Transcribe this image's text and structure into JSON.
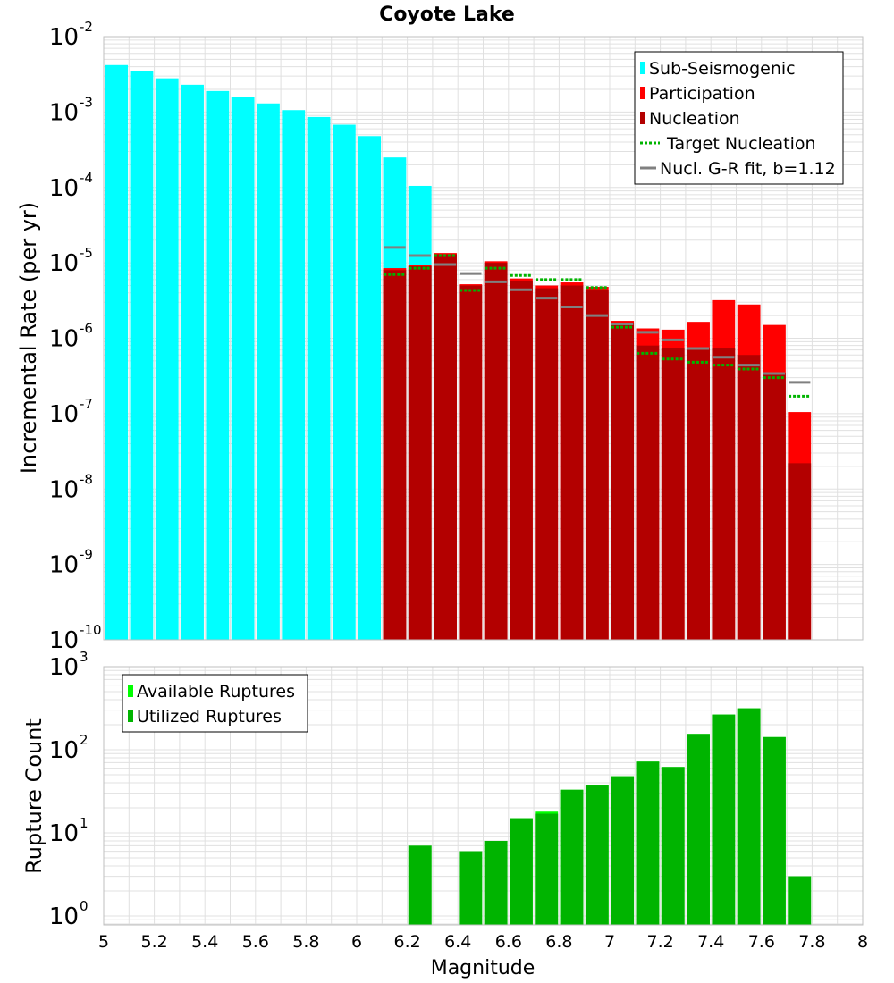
{
  "title": "Coyote Lake",
  "colors": {
    "sub_seismogenic": "#00ffff",
    "participation": "#ff0000",
    "nucleation": "#b30000",
    "target_nucleation": "#00b400",
    "gr_fit": "#808080",
    "available": "#00ff00",
    "utilized": "#00b400",
    "grid": "#e0e0e0",
    "frame": "#bfbfbf"
  },
  "chart_data": [
    {
      "type": "bar",
      "name": "rate-panel",
      "scale": "log",
      "ylabel": "Incremental Rate (per yr)",
      "xlabel": "",
      "xlim": [
        5,
        8
      ],
      "ylim": [
        1e-10,
        0.01
      ],
      "y_ticks": [
        {
          "base": "10",
          "exp": "-10",
          "value": 1e-10
        },
        {
          "base": "10",
          "exp": "-9",
          "value": 1e-09
        },
        {
          "base": "10",
          "exp": "-8",
          "value": 1e-08
        },
        {
          "base": "10",
          "exp": "-7",
          "value": 1e-07
        },
        {
          "base": "10",
          "exp": "-6",
          "value": 1e-06
        },
        {
          "base": "10",
          "exp": "-5",
          "value": 1e-05
        },
        {
          "base": "10",
          "exp": "-4",
          "value": 0.0001
        },
        {
          "base": "10",
          "exp": "-3",
          "value": 0.001
        },
        {
          "base": "10",
          "exp": "-2",
          "value": 0.01
        }
      ],
      "legend": {
        "placement": "top-right",
        "entries": [
          {
            "label": "Sub-Seismogenic",
            "kind": "box",
            "color_key": "sub_seismogenic"
          },
          {
            "label": "Participation",
            "kind": "box",
            "color_key": "participation"
          },
          {
            "label": "Nucleation",
            "kind": "box",
            "color_key": "nucleation"
          },
          {
            "label": "Target Nucleation",
            "kind": "dotted",
            "color_key": "target_nucleation"
          },
          {
            "label": "Nucl. G-R fit, b=1.12",
            "kind": "line",
            "color_key": "gr_fit"
          }
        ]
      },
      "series": [
        {
          "name": "Sub-Seismogenic",
          "color_key": "sub_seismogenic",
          "style": "bar",
          "x": [
            5.05,
            5.15,
            5.25,
            5.35,
            5.45,
            5.55,
            5.65,
            5.75,
            5.85,
            5.95,
            6.05,
            6.15,
            6.25
          ],
          "values": [
            0.0042,
            0.0035,
            0.0028,
            0.0023,
            0.0019,
            0.0016,
            0.0013,
            0.00106,
            0.00086,
            0.00068,
            0.00048,
            0.00025,
            0.000105
          ]
        },
        {
          "name": "Participation",
          "color_key": "participation",
          "style": "bar",
          "x": [
            6.15,
            6.25,
            6.35,
            6.45,
            6.55,
            6.65,
            6.75,
            6.85,
            6.95,
            7.05,
            7.15,
            7.25,
            7.35,
            7.45,
            7.55,
            7.65,
            7.75
          ],
          "values": [
            8.5e-06,
            9.5e-06,
            1.35e-05,
            5.2e-06,
            1.05e-05,
            6.2e-06,
            5e-06,
            5.5e-06,
            4.8e-06,
            1.7e-06,
            1.35e-06,
            1.3e-06,
            1.65e-06,
            3.2e-06,
            2.8e-06,
            1.5e-06,
            1.05e-07
          ]
        },
        {
          "name": "Nucleation",
          "color_key": "nucleation",
          "style": "bar",
          "x": [
            6.15,
            6.25,
            6.35,
            6.45,
            6.55,
            6.65,
            6.75,
            6.85,
            6.95,
            7.05,
            7.15,
            7.25,
            7.35,
            7.45,
            7.55,
            7.65,
            7.75
          ],
          "values": [
            8e-06,
            9e-06,
            1.3e-05,
            5e-06,
            1e-05,
            5.8e-06,
            4.6e-06,
            5e-06,
            4.3e-06,
            1.6e-06,
            8e-07,
            7.5e-07,
            7.5e-07,
            7.5e-07,
            6e-07,
            3.5e-07,
            2.2e-08
          ]
        },
        {
          "name": "Target Nucleation",
          "color_key": "target_nucleation",
          "style": "dotted",
          "x": [
            6.15,
            6.25,
            6.35,
            6.45,
            6.55,
            6.65,
            6.75,
            6.85,
            6.95,
            7.05,
            7.15,
            7.25,
            7.35,
            7.45,
            7.55,
            7.65,
            7.75
          ],
          "values": [
            7e-06,
            8.5e-06,
            1.25e-05,
            4.3e-06,
            8.5e-06,
            6.8e-06,
            6e-06,
            6e-06,
            4.7e-06,
            1.4e-06,
            6.3e-07,
            5.3e-07,
            4.8e-07,
            4.4e-07,
            3.9e-07,
            3e-07,
            1.7e-07
          ]
        },
        {
          "name": "Nucl. G-R fit, b=1.12",
          "color_key": "gr_fit",
          "style": "line",
          "x": [
            6.15,
            6.25,
            6.35,
            6.45,
            6.55,
            6.65,
            6.75,
            6.85,
            6.95,
            7.05,
            7.15,
            7.25,
            7.35,
            7.45,
            7.55,
            7.65,
            7.75
          ],
          "values": [
            1.6e-05,
            1.25e-05,
            9.5e-06,
            7.2e-06,
            5.6e-06,
            4.4e-06,
            3.4e-06,
            2.6e-06,
            2e-06,
            1.55e-06,
            1.2e-06,
            9.5e-07,
            7.3e-07,
            5.6e-07,
            4.4e-07,
            3.4e-07,
            2.6e-07
          ]
        }
      ]
    },
    {
      "type": "bar",
      "name": "count-panel",
      "scale": "log",
      "ylabel": "Rupture Count",
      "xlabel": "Magnitude",
      "xlim": [
        5,
        8
      ],
      "ylim": [
        0.78,
        1000
      ],
      "x_ticks": [
        "5",
        "5.2",
        "5.4",
        "5.6",
        "5.8",
        "6",
        "6.2",
        "6.4",
        "6.6",
        "6.8",
        "7",
        "7.2",
        "7.4",
        "7.6",
        "7.8",
        "8"
      ],
      "y_ticks": [
        {
          "base": "10",
          "exp": "0",
          "value": 1
        },
        {
          "base": "10",
          "exp": "1",
          "value": 10
        },
        {
          "base": "10",
          "exp": "2",
          "value": 100
        },
        {
          "base": "10",
          "exp": "3",
          "value": 1000
        }
      ],
      "legend": {
        "placement": "top-left",
        "entries": [
          {
            "label": "Available Ruptures",
            "kind": "box",
            "color_key": "available"
          },
          {
            "label": "Utilized Ruptures",
            "kind": "box",
            "color_key": "utilized"
          }
        ]
      },
      "series": [
        {
          "name": "Available Ruptures",
          "color_key": "available",
          "style": "bar",
          "x": [
            6.25,
            6.45,
            6.55,
            6.65,
            6.75,
            6.85,
            6.95,
            7.05,
            7.15,
            7.25,
            7.35,
            7.45,
            7.55,
            7.65,
            7.75
          ],
          "values": [
            7,
            6,
            8,
            15,
            18,
            33,
            38,
            48,
            72,
            62,
            155,
            265,
            315,
            142,
            3
          ]
        },
        {
          "name": "Utilized Ruptures",
          "color_key": "utilized",
          "style": "bar",
          "x": [
            6.25,
            6.45,
            6.55,
            6.65,
            6.75,
            6.85,
            6.95,
            7.05,
            7.15,
            7.25,
            7.35,
            7.45,
            7.55,
            7.65,
            7.75
          ],
          "values": [
            7,
            6,
            8,
            15,
            17,
            33,
            38,
            48,
            72,
            62,
            155,
            265,
            315,
            142,
            3
          ]
        }
      ]
    }
  ]
}
